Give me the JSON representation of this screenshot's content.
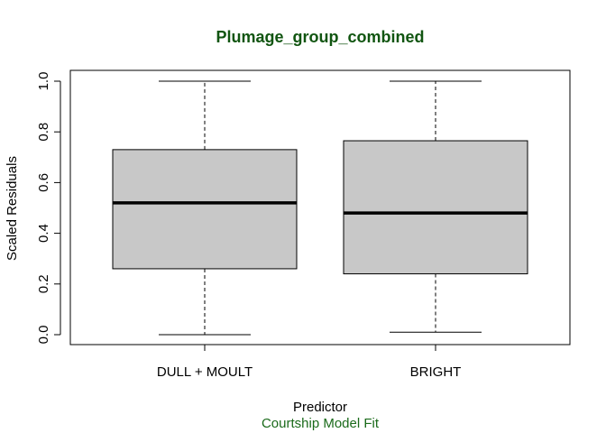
{
  "chart_data": {
    "type": "boxplot",
    "title": "Plumage_group_combined",
    "xlabel": "Predictor",
    "ylabel": "Scaled Residuals",
    "subtitle": "Courtship Model Fit",
    "ylim": [
      0,
      1
    ],
    "yticks": [
      0.0,
      0.2,
      0.4,
      0.6,
      0.8,
      1.0
    ],
    "ytick_labels": [
      "0.0",
      "0.2",
      "0.4",
      "0.6",
      "0.8",
      "1.0"
    ],
    "categories": [
      "DULL + MOULT",
      "BRIGHT"
    ],
    "boxes": [
      {
        "min": 0.0,
        "q1": 0.26,
        "median": 0.52,
        "q3": 0.73,
        "max": 1.0
      },
      {
        "min": 0.01,
        "q1": 0.24,
        "median": 0.48,
        "q3": 0.765,
        "max": 1.0
      }
    ],
    "colors": {
      "title": "#115511",
      "subtitle": "#1a6a1a",
      "box_fill": "#c8c8c8",
      "line": "#000000"
    }
  }
}
